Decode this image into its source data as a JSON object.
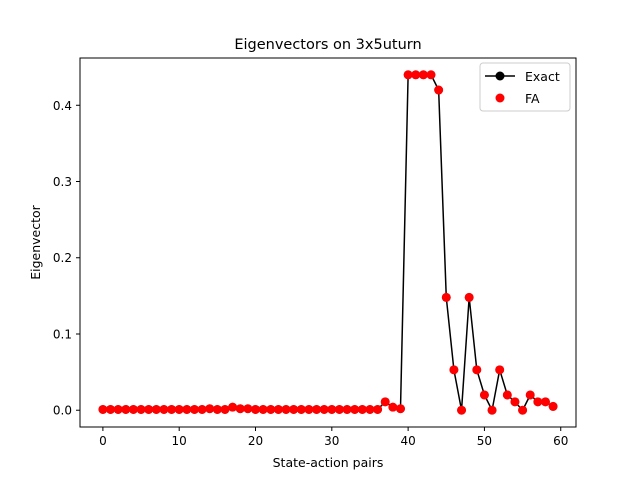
{
  "chart_data": {
    "type": "line",
    "title": "Eigenvectors on 3x5uturn",
    "xlabel": "State-action pairs",
    "ylabel": "Eigenvector",
    "xlim": [
      -3,
      62
    ],
    "ylim": [
      -0.022,
      0.462
    ],
    "xticks": [
      0,
      10,
      20,
      30,
      40,
      50,
      60
    ],
    "yticks": [
      0.0,
      0.1,
      0.2,
      0.3,
      0.4
    ],
    "ytick_labels": [
      "0.0",
      "0.1",
      "0.2",
      "0.3",
      "0.4"
    ],
    "grid": false,
    "legend_position": "top-right",
    "x": [
      0,
      1,
      2,
      3,
      4,
      5,
      6,
      7,
      8,
      9,
      10,
      11,
      12,
      13,
      14,
      15,
      16,
      17,
      18,
      19,
      20,
      21,
      22,
      23,
      24,
      25,
      26,
      27,
      28,
      29,
      30,
      31,
      32,
      33,
      34,
      35,
      36,
      37,
      38,
      39,
      40,
      41,
      42,
      43,
      44,
      45,
      46,
      47,
      48,
      49,
      50,
      51,
      52,
      53,
      54,
      55,
      56,
      57,
      58,
      59
    ],
    "series": [
      {
        "name": "Exact",
        "style": "line-marker",
        "color": "#000000",
        "values": [
          0.001,
          0.001,
          0.001,
          0.001,
          0.001,
          0.001,
          0.001,
          0.001,
          0.001,
          0.001,
          0.001,
          0.001,
          0.001,
          0.001,
          0.002,
          0.001,
          0.001,
          0.004,
          0.002,
          0.002,
          0.001,
          0.001,
          0.001,
          0.001,
          0.001,
          0.001,
          0.001,
          0.001,
          0.001,
          0.001,
          0.001,
          0.001,
          0.001,
          0.001,
          0.001,
          0.001,
          0.001,
          0.011,
          0.004,
          0.002,
          0.44,
          0.44,
          0.44,
          0.44,
          0.42,
          0.148,
          0.053,
          0.0,
          0.148,
          0.053,
          0.02,
          0.0,
          0.053,
          0.02,
          0.011,
          0.0,
          0.02,
          0.011,
          0.011,
          0.005
        ]
      },
      {
        "name": "FA",
        "style": "marker",
        "color": "#ff0000",
        "values": [
          0.001,
          0.001,
          0.001,
          0.001,
          0.001,
          0.001,
          0.001,
          0.001,
          0.001,
          0.001,
          0.001,
          0.001,
          0.001,
          0.001,
          0.002,
          0.001,
          0.001,
          0.004,
          0.002,
          0.002,
          0.001,
          0.001,
          0.001,
          0.001,
          0.001,
          0.001,
          0.001,
          0.001,
          0.001,
          0.001,
          0.001,
          0.001,
          0.001,
          0.001,
          0.001,
          0.001,
          0.001,
          0.011,
          0.004,
          0.002,
          0.44,
          0.44,
          0.44,
          0.44,
          0.42,
          0.148,
          0.053,
          0.0,
          0.148,
          0.053,
          0.02,
          0.0,
          0.053,
          0.02,
          0.011,
          0.0,
          0.02,
          0.011,
          0.011,
          0.005
        ]
      }
    ]
  }
}
